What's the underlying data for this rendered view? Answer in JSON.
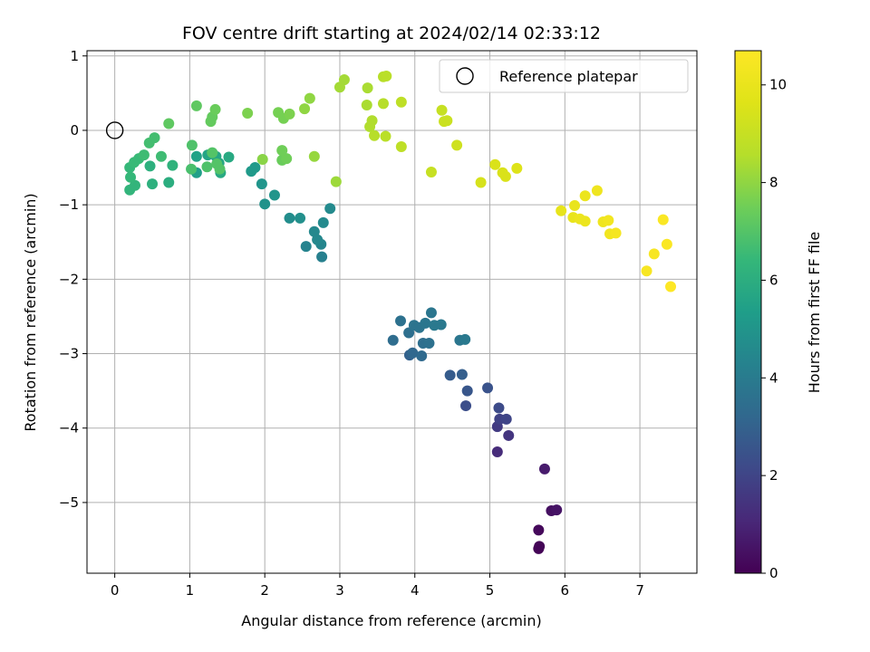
{
  "chart_data": {
    "type": "scatter",
    "title": "FOV centre drift starting at 2024/02/14 02:33:12",
    "xlabel": "Angular distance from reference (arcmin)",
    "ylabel": "Rotation from reference (arcmin)",
    "xlim": [
      -0.37,
      7.76
    ],
    "ylim": [
      -5.95,
      1.07
    ],
    "xticks": [
      0,
      1,
      2,
      3,
      4,
      5,
      6,
      7
    ],
    "yticks": [
      1,
      0,
      -1,
      -2,
      -3,
      -4,
      -5
    ],
    "xtick_labels": [
      "0",
      "1",
      "2",
      "3",
      "4",
      "5",
      "6",
      "7"
    ],
    "ytick_labels": [
      "1",
      "0",
      "−1",
      "−2",
      "−3",
      "−4",
      "−5"
    ],
    "grid": true,
    "colormap": "viridis",
    "colorbar": {
      "label": "Hours from first FF file",
      "range": [
        0,
        10.7
      ],
      "ticks": [
        0,
        2,
        4,
        6,
        8,
        10
      ],
      "tick_labels": [
        "0",
        "2",
        "4",
        "6",
        "8",
        "10"
      ]
    },
    "reference_point": {
      "x": 0,
      "y": 0,
      "color": "#000000"
    },
    "legend": {
      "position": "top-right",
      "entries": [
        "Reference platepar"
      ]
    },
    "points": [
      {
        "x": 5.65,
        "y": -5.62,
        "t": 0.05
      },
      {
        "x": 5.66,
        "y": -5.59,
        "t": 0.1
      },
      {
        "x": 5.65,
        "y": -5.37,
        "t": 0.2
      },
      {
        "x": 5.82,
        "y": -5.11,
        "t": 0.4
      },
      {
        "x": 5.89,
        "y": -5.1,
        "t": 0.5
      },
      {
        "x": 5.73,
        "y": -4.55,
        "t": 0.7
      },
      {
        "x": 5.1,
        "y": -4.32,
        "t": 1.2
      },
      {
        "x": 5.25,
        "y": -4.1,
        "t": 1.5
      },
      {
        "x": 5.1,
        "y": -3.98,
        "t": 1.7
      },
      {
        "x": 5.13,
        "y": -3.88,
        "t": 1.9
      },
      {
        "x": 5.22,
        "y": -3.88,
        "t": 2.0
      },
      {
        "x": 5.12,
        "y": -3.73,
        "t": 2.2
      },
      {
        "x": 4.68,
        "y": -3.7,
        "t": 2.3
      },
      {
        "x": 4.97,
        "y": -3.46,
        "t": 2.5
      },
      {
        "x": 4.7,
        "y": -3.5,
        "t": 2.6
      },
      {
        "x": 4.47,
        "y": -3.29,
        "t": 2.8
      },
      {
        "x": 4.63,
        "y": -3.28,
        "t": 2.9
      },
      {
        "x": 3.93,
        "y": -3.02,
        "t": 3.0
      },
      {
        "x": 3.97,
        "y": -2.99,
        "t": 3.2
      },
      {
        "x": 4.09,
        "y": -3.03,
        "t": 3.3
      },
      {
        "x": 3.71,
        "y": -2.82,
        "t": 3.4
      },
      {
        "x": 3.92,
        "y": -2.72,
        "t": 3.5
      },
      {
        "x": 4.11,
        "y": -2.86,
        "t": 3.5
      },
      {
        "x": 4.19,
        "y": -2.86,
        "t": 3.6
      },
      {
        "x": 3.81,
        "y": -2.56,
        "t": 3.6
      },
      {
        "x": 3.99,
        "y": -2.62,
        "t": 3.7
      },
      {
        "x": 4.06,
        "y": -2.65,
        "t": 3.7
      },
      {
        "x": 4.14,
        "y": -2.59,
        "t": 3.8
      },
      {
        "x": 4.22,
        "y": -2.45,
        "t": 3.8
      },
      {
        "x": 4.26,
        "y": -2.62,
        "t": 3.9
      },
      {
        "x": 4.35,
        "y": -2.61,
        "t": 3.9
      },
      {
        "x": 4.6,
        "y": -2.82,
        "t": 3.8
      },
      {
        "x": 4.67,
        "y": -2.81,
        "t": 3.9
      },
      {
        "x": 2.76,
        "y": -1.7,
        "t": 4.2
      },
      {
        "x": 2.55,
        "y": -1.56,
        "t": 4.3
      },
      {
        "x": 2.75,
        "y": -1.53,
        "t": 4.4
      },
      {
        "x": 2.7,
        "y": -1.47,
        "t": 4.5
      },
      {
        "x": 2.66,
        "y": -1.36,
        "t": 4.5
      },
      {
        "x": 2.78,
        "y": -1.24,
        "t": 4.6
      },
      {
        "x": 2.87,
        "y": -1.05,
        "t": 4.6
      },
      {
        "x": 2.33,
        "y": -1.18,
        "t": 4.7
      },
      {
        "x": 2.47,
        "y": -1.18,
        "t": 4.8
      },
      {
        "x": 2.0,
        "y": -0.99,
        "t": 4.9
      },
      {
        "x": 2.13,
        "y": -0.87,
        "t": 5.0
      },
      {
        "x": 1.96,
        "y": -0.72,
        "t": 5.0
      },
      {
        "x": 1.82,
        "y": -0.55,
        "t": 5.2
      },
      {
        "x": 1.87,
        "y": -0.5,
        "t": 5.2
      },
      {
        "x": 1.09,
        "y": -0.57,
        "t": 5.4
      },
      {
        "x": 1.09,
        "y": -0.35,
        "t": 5.5
      },
      {
        "x": 1.24,
        "y": -0.33,
        "t": 5.6
      },
      {
        "x": 1.39,
        "y": -0.44,
        "t": 5.7
      },
      {
        "x": 1.35,
        "y": -0.35,
        "t": 5.7
      },
      {
        "x": 1.52,
        "y": -0.36,
        "t": 5.8
      },
      {
        "x": 1.41,
        "y": -0.57,
        "t": 5.8
      },
      {
        "x": 0.72,
        "y": -0.7,
        "t": 6.0
      },
      {
        "x": 0.5,
        "y": -0.72,
        "t": 6.1
      },
      {
        "x": 0.47,
        "y": -0.48,
        "t": 6.1
      },
      {
        "x": 0.77,
        "y": -0.47,
        "t": 6.2
      },
      {
        "x": 0.2,
        "y": -0.8,
        "t": 6.3
      },
      {
        "x": 0.27,
        "y": -0.74,
        "t": 6.3
      },
      {
        "x": 0.21,
        "y": -0.63,
        "t": 6.4
      },
      {
        "x": 0.2,
        "y": -0.5,
        "t": 6.4
      },
      {
        "x": 0.26,
        "y": -0.43,
        "t": 6.5
      },
      {
        "x": 0.32,
        "y": -0.38,
        "t": 6.5
      },
      {
        "x": 0.62,
        "y": -0.35,
        "t": 6.6
      },
      {
        "x": 0.39,
        "y": -0.33,
        "t": 6.6
      },
      {
        "x": 0.46,
        "y": -0.17,
        "t": 6.7
      },
      {
        "x": 0.53,
        "y": -0.1,
        "t": 6.7
      },
      {
        "x": 1.02,
        "y": -0.52,
        "t": 6.8
      },
      {
        "x": 1.23,
        "y": -0.49,
        "t": 6.9
      },
      {
        "x": 1.03,
        "y": -0.2,
        "t": 6.9
      },
      {
        "x": 1.3,
        "y": -0.3,
        "t": 7.0
      },
      {
        "x": 1.36,
        "y": -0.45,
        "t": 7.0
      },
      {
        "x": 1.4,
        "y": -0.52,
        "t": 7.0
      },
      {
        "x": 0.72,
        "y": 0.09,
        "t": 7.2
      },
      {
        "x": 1.09,
        "y": 0.33,
        "t": 7.2
      },
      {
        "x": 1.28,
        "y": 0.12,
        "t": 7.3
      },
      {
        "x": 1.3,
        "y": 0.18,
        "t": 7.3
      },
      {
        "x": 1.34,
        "y": 0.28,
        "t": 7.4
      },
      {
        "x": 2.23,
        "y": -0.4,
        "t": 7.4
      },
      {
        "x": 2.29,
        "y": -0.38,
        "t": 7.5
      },
      {
        "x": 2.23,
        "y": -0.27,
        "t": 7.5
      },
      {
        "x": 2.25,
        "y": 0.16,
        "t": 7.6
      },
      {
        "x": 2.18,
        "y": 0.24,
        "t": 7.6
      },
      {
        "x": 2.33,
        "y": 0.22,
        "t": 7.7
      },
      {
        "x": 1.77,
        "y": 0.23,
        "t": 7.7
      },
      {
        "x": 1.97,
        "y": -0.39,
        "t": 7.9
      },
      {
        "x": 2.53,
        "y": 0.29,
        "t": 8.0
      },
      {
        "x": 2.6,
        "y": 0.43,
        "t": 8.0
      },
      {
        "x": 2.66,
        "y": -0.35,
        "t": 8.1
      },
      {
        "x": 2.95,
        "y": -0.69,
        "t": 8.2
      },
      {
        "x": 3.0,
        "y": 0.58,
        "t": 8.3
      },
      {
        "x": 3.06,
        "y": 0.68,
        "t": 8.3
      },
      {
        "x": 3.36,
        "y": 0.34,
        "t": 8.4
      },
      {
        "x": 3.37,
        "y": 0.57,
        "t": 8.4
      },
      {
        "x": 3.4,
        "y": 0.05,
        "t": 8.5
      },
      {
        "x": 3.43,
        "y": 0.13,
        "t": 8.5
      },
      {
        "x": 3.46,
        "y": -0.07,
        "t": 8.6
      },
      {
        "x": 3.58,
        "y": 0.36,
        "t": 8.6
      },
      {
        "x": 3.58,
        "y": 0.72,
        "t": 8.6
      },
      {
        "x": 3.62,
        "y": 0.73,
        "t": 8.7
      },
      {
        "x": 3.61,
        "y": -0.08,
        "t": 8.7
      },
      {
        "x": 3.82,
        "y": 0.38,
        "t": 8.8
      },
      {
        "x": 3.82,
        "y": -0.22,
        "t": 8.8
      },
      {
        "x": 4.22,
        "y": -0.56,
        "t": 9.0
      },
      {
        "x": 4.36,
        "y": 0.27,
        "t": 9.0
      },
      {
        "x": 4.39,
        "y": 0.12,
        "t": 9.1
      },
      {
        "x": 4.43,
        "y": 0.13,
        "t": 9.1
      },
      {
        "x": 4.56,
        "y": -0.2,
        "t": 9.2
      },
      {
        "x": 4.88,
        "y": -0.7,
        "t": 9.4
      },
      {
        "x": 5.07,
        "y": -0.46,
        "t": 9.5
      },
      {
        "x": 5.17,
        "y": -0.57,
        "t": 9.5
      },
      {
        "x": 5.21,
        "y": -0.62,
        "t": 9.5
      },
      {
        "x": 5.36,
        "y": -0.51,
        "t": 9.6
      },
      {
        "x": 5.95,
        "y": -1.08,
        "t": 9.9
      },
      {
        "x": 6.11,
        "y": -1.17,
        "t": 10.0
      },
      {
        "x": 6.13,
        "y": -1.01,
        "t": 10.0
      },
      {
        "x": 6.2,
        "y": -1.19,
        "t": 10.1
      },
      {
        "x": 6.27,
        "y": -1.22,
        "t": 10.1
      },
      {
        "x": 6.27,
        "y": -0.88,
        "t": 10.1
      },
      {
        "x": 6.43,
        "y": -0.81,
        "t": 10.2
      },
      {
        "x": 6.51,
        "y": -1.23,
        "t": 10.2
      },
      {
        "x": 6.58,
        "y": -1.21,
        "t": 10.3
      },
      {
        "x": 6.6,
        "y": -1.39,
        "t": 10.3
      },
      {
        "x": 6.68,
        "y": -1.38,
        "t": 10.4
      },
      {
        "x": 7.09,
        "y": -1.89,
        "t": 10.5
      },
      {
        "x": 7.19,
        "y": -1.66,
        "t": 10.5
      },
      {
        "x": 7.31,
        "y": -1.2,
        "t": 10.6
      },
      {
        "x": 7.36,
        "y": -1.53,
        "t": 10.6
      },
      {
        "x": 7.41,
        "y": -2.1,
        "t": 10.7
      }
    ]
  }
}
